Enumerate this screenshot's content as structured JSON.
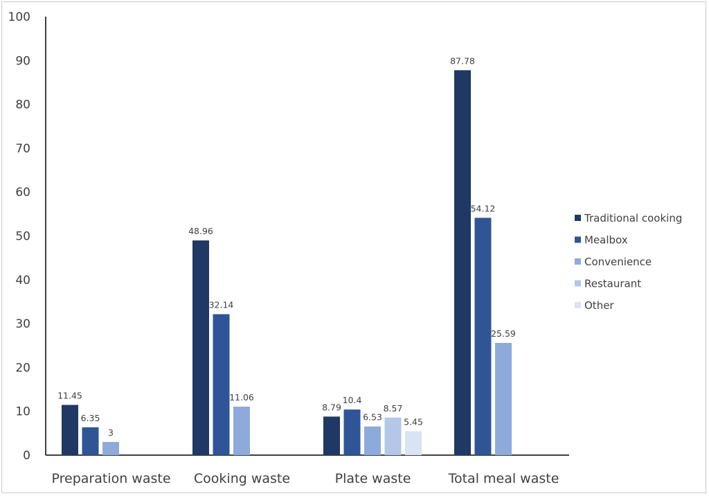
{
  "chart_data": {
    "type": "bar",
    "title": "",
    "xlabel": "",
    "ylabel": "",
    "ylim": [
      0,
      100
    ],
    "yticks": [
      0,
      10,
      20,
      30,
      40,
      50,
      60,
      70,
      80,
      90,
      100
    ],
    "grid": false,
    "legend_position": "right",
    "categories": [
      "Preparation waste",
      "Cooking waste",
      "Plate waste",
      "Total meal waste"
    ],
    "series": [
      {
        "name": "Traditional cooking",
        "color": "#1f3864",
        "values": [
          11.45,
          48.96,
          8.79,
          87.78
        ],
        "labels": [
          "11.45",
          "48.96",
          "8.79",
          "87.78"
        ]
      },
      {
        "name": "Mealbox",
        "color": "#2f5597",
        "values": [
          6.35,
          32.14,
          10.4,
          54.12
        ],
        "labels": [
          "6.35",
          "32.14",
          "10.4",
          "54.12"
        ]
      },
      {
        "name": "Convenience",
        "color": "#8eaadb",
        "values": [
          3,
          11.06,
          6.53,
          25.59
        ],
        "labels": [
          "3",
          "11.06",
          "6.53",
          "25.59"
        ]
      },
      {
        "name": "Restaurant",
        "color": "#b4c7e7",
        "values": [
          null,
          null,
          8.57,
          null
        ],
        "labels": [
          "",
          "",
          "8.57",
          ""
        ]
      },
      {
        "name": "Other",
        "color": "#dae3f3",
        "values": [
          null,
          null,
          5.45,
          null
        ],
        "labels": [
          "",
          "",
          "5.45",
          ""
        ]
      }
    ]
  }
}
